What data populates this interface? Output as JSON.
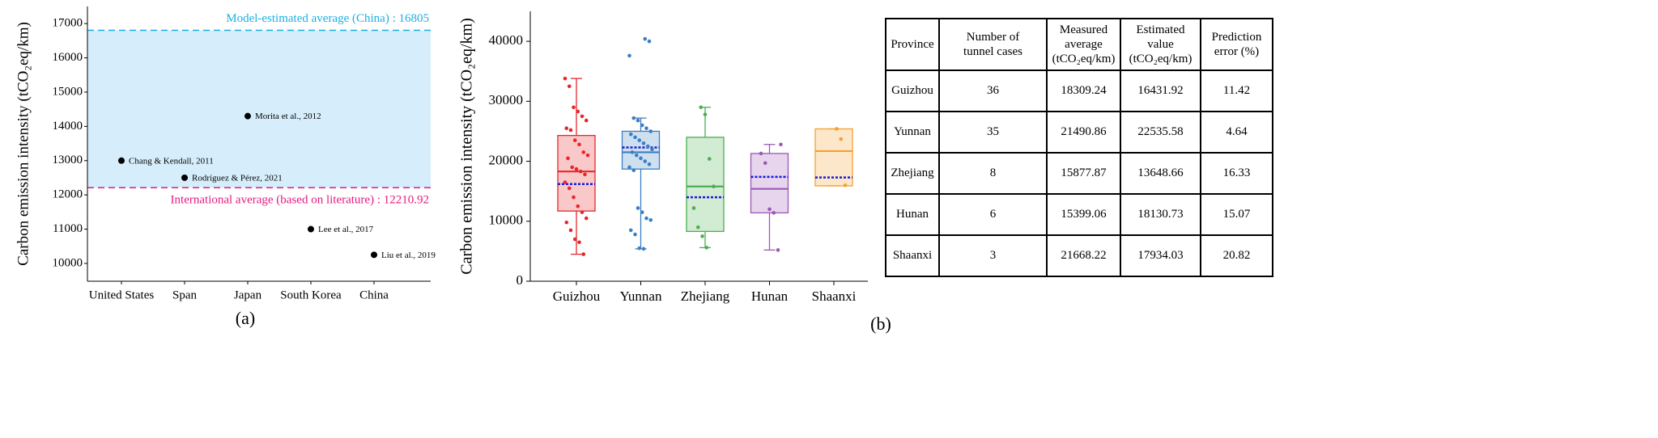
{
  "chart_data": [
    {
      "type": "scatter",
      "y_label": "Carbon emission intensity (tCO₂eq/km)",
      "categories": [
        "United States",
        "Span",
        "Japan",
        "South Korea",
        "China"
      ],
      "values": [
        13000,
        12500,
        14300,
        11000,
        10250
      ],
      "point_labels": [
        "Chang & Kendall, 2011",
        "Rodríguez & Pérez, 2021",
        "Morita et al., 2012",
        "Lee et al., 2017",
        "Liu et al., 2019"
      ],
      "color": "#000000",
      "reference_lines": [
        {
          "value": 16805,
          "label": "Model-estimated average (China) : 16805",
          "color": "#1ab0e0"
        },
        {
          "value": 12210.92,
          "label": "International average (based on literature) : 12210.92",
          "color": "#e6197f"
        }
      ],
      "band_color": "#d6eefb",
      "ylim": [
        9480,
        17500
      ],
      "yticks": [
        10000,
        11000,
        12000,
        13000,
        14000,
        15000,
        16000,
        17000
      ],
      "caption": "(a)"
    },
    {
      "type": "box",
      "y_label": "Carbon emission intensity (tCO₂eq/km)",
      "categories": [
        "Guizhou",
        "Yunnan",
        "Zhejiang",
        "Hunan",
        "Shaanxi"
      ],
      "mean_color": "#1a1adc",
      "boxes": [
        {
          "color": "#e8262a",
          "whisker_low": 4500,
          "q1": 11700,
          "median": 18300,
          "q3": 24300,
          "whisker_high": 33800,
          "mean": 16200,
          "points": [
            33800,
            32500,
            29000,
            28300,
            27500,
            26800,
            25500,
            25200,
            23500,
            22800,
            21500,
            21000,
            20500,
            19000,
            18700,
            18300,
            17800,
            16500,
            15500,
            14000,
            12500,
            11500,
            10500,
            9800,
            8500,
            7000,
            6500,
            4500
          ]
        },
        {
          "color": "#3b7fc4",
          "whisker_low": 5400,
          "q1": 18700,
          "median": 21500,
          "q3": 25000,
          "whisker_high": 27200,
          "mean": 22300,
          "points": [
            40400,
            40000,
            37600,
            27200,
            26800,
            26000,
            25500,
            25000,
            24500,
            24000,
            23500,
            23000,
            22500,
            22000,
            21500,
            21000,
            20500,
            20000,
            19500,
            19000,
            18500,
            12200,
            11500,
            10500,
            10200,
            8500,
            7800,
            5500,
            5400
          ]
        },
        {
          "color": "#4caf50",
          "whisker_low": 5600,
          "q1": 8300,
          "median": 15800,
          "q3": 24000,
          "whisker_high": 29000,
          "mean": 14000,
          "points": [
            29000,
            27800,
            20400,
            15800,
            12200,
            9000,
            7500,
            5600
          ]
        },
        {
          "color": "#9b59b6",
          "whisker_low": 5200,
          "q1": 11400,
          "median": 15400,
          "q3": 21300,
          "whisker_high": 22800,
          "mean": 17400,
          "points": [
            22800,
            21300,
            19700,
            12000,
            11400,
            5200
          ]
        },
        {
          "color": "#f5a030",
          "whisker_low": 15900,
          "q1": 15900,
          "median": 21700,
          "q3": 25400,
          "whisker_high": 25400,
          "mean": 17300,
          "points": [
            25400,
            23700,
            16000
          ]
        }
      ],
      "ylim": [
        0,
        45000
      ],
      "yticks": [
        0,
        10000,
        20000,
        30000,
        40000
      ],
      "caption": "(b)"
    }
  ],
  "table": {
    "header": [
      "Province",
      "Number of tunnel cases",
      "Measured average (tCO₂eq/km)",
      "Estimated value (tCO₂eq/km)",
      "Prediction error (%)"
    ],
    "rows": [
      [
        "Guizhou",
        "36",
        "18309.24",
        "16431.92",
        "11.42"
      ],
      [
        "Yunnan",
        "35",
        "21490.86",
        "22535.58",
        "4.64"
      ],
      [
        "Zhejiang",
        "8",
        "15877.87",
        "13648.66",
        "16.33"
      ],
      [
        "Hunan",
        "6",
        "15399.06",
        "18130.73",
        "15.07"
      ],
      [
        "Shaanxi",
        "3",
        "21668.22",
        "17934.03",
        "20.82"
      ]
    ]
  }
}
